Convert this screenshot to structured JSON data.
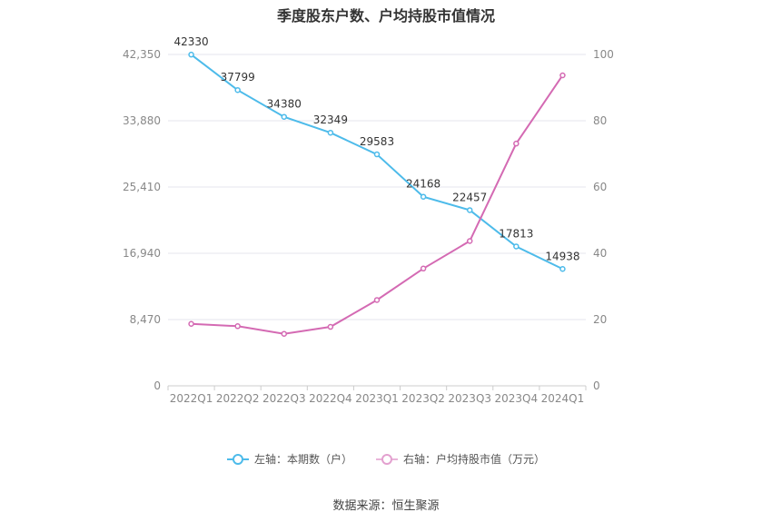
{
  "chart_data": {
    "type": "line",
    "title": "季度股东户数、户均持股市值情况",
    "categories": [
      "2022Q1",
      "2022Q2",
      "2022Q3",
      "2022Q4",
      "2023Q1",
      "2023Q2",
      "2023Q3",
      "2023Q4",
      "2024Q1"
    ],
    "series": [
      {
        "name": "左轴：本期数（户）",
        "axis": "left",
        "color": "#4dbbea",
        "values": [
          42330,
          37799,
          34380,
          32349,
          29583,
          24168,
          22457,
          17813,
          14938
        ],
        "data_labels": [
          "42330",
          "37799",
          "34380",
          "32349",
          "29583",
          "24168",
          "22457",
          "17813",
          "14938"
        ]
      },
      {
        "name": "右轴：户均持股市值（万元）",
        "axis": "right",
        "color": "#d46ab3",
        "values": [
          18.7,
          18.0,
          15.7,
          17.8,
          25.9,
          35.4,
          43.7,
          73.1,
          93.7
        ]
      }
    ],
    "y_left": {
      "ylim": [
        0,
        42350
      ],
      "ticks": [
        0,
        8470,
        16940,
        25410,
        33880,
        42350
      ],
      "tick_labels": [
        "0",
        "8,470",
        "16,940",
        "25,410",
        "33,880",
        "42,350"
      ]
    },
    "y_right": {
      "ylim": [
        0,
        100
      ],
      "ticks": [
        0,
        20,
        40,
        60,
        80,
        100
      ],
      "tick_labels": [
        "0",
        "20",
        "40",
        "60",
        "80",
        "100"
      ]
    },
    "grid": true,
    "legend_position": "bottom"
  },
  "source": "数据来源：恒生聚源"
}
